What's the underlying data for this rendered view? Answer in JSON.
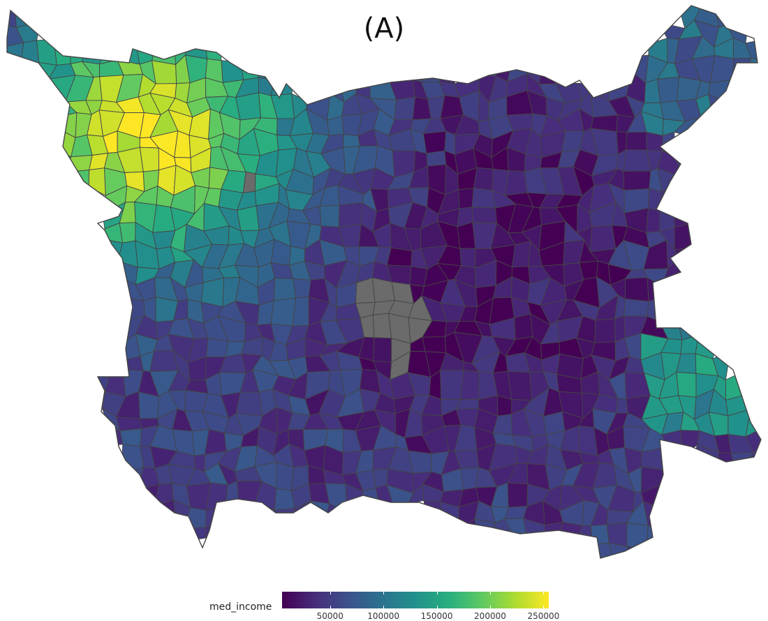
{
  "title": "(A)",
  "legend": {
    "title": "med_income",
    "ticks": [
      {
        "value": 50000,
        "label": "50000"
      },
      {
        "value": 100000,
        "label": "100000"
      },
      {
        "value": 150000,
        "label": "150000"
      },
      {
        "value": 200000,
        "label": "200000"
      },
      {
        "value": 250000,
        "label": "250000"
      }
    ],
    "range": [
      5000,
      255000
    ]
  },
  "colors": {
    "viridis": [
      "#440154",
      "#472d7b",
      "#3b528b",
      "#2c728e",
      "#21918c",
      "#28ae80",
      "#5ec962",
      "#addc30",
      "#fde725"
    ],
    "missing": "#6b6b6b",
    "border": "#444444"
  }
}
